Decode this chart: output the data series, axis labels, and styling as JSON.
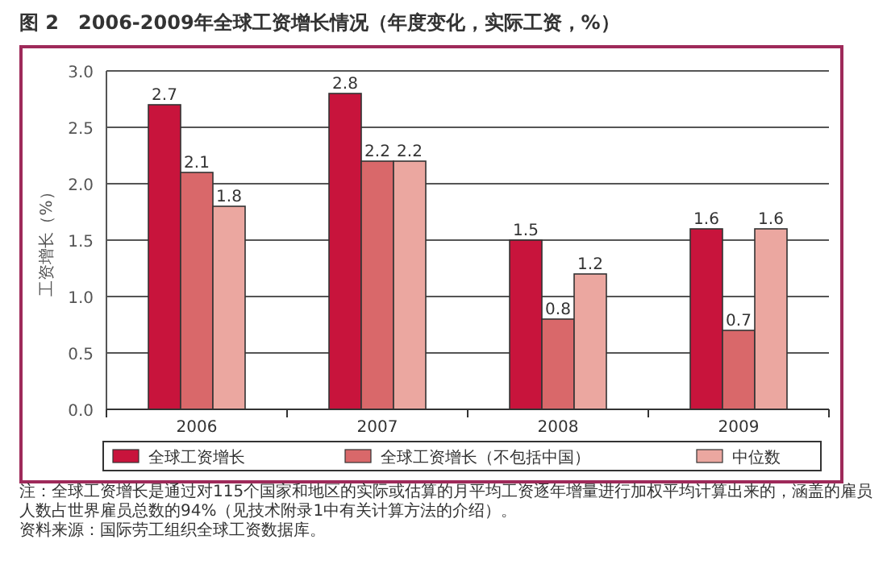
{
  "chart_data": {
    "type": "bar",
    "title": "图 2　2006-2009年全球工资增长情况（年度变化，实际工资，%）",
    "ylabel": "工资增长（%）",
    "categories": [
      "2006",
      "2007",
      "2008",
      "2009"
    ],
    "series": [
      {
        "name": "全球工资增长",
        "color": "#c8143c",
        "values": [
          2.7,
          2.8,
          1.5,
          1.6
        ]
      },
      {
        "name": "全球工资增长（不包括中国）",
        "color": "#d9686a",
        "values": [
          2.1,
          2.2,
          0.8,
          0.7
        ]
      },
      {
        "name": "中位数",
        "color": "#eba7a0",
        "values": [
          1.8,
          2.2,
          1.2,
          1.6
        ]
      }
    ],
    "ylim": [
      0,
      3
    ],
    "yticks": [
      {
        "value": 0,
        "label": "0.0"
      },
      {
        "value": 0.5,
        "label": "0.5"
      },
      {
        "value": 1,
        "label": "1.0"
      },
      {
        "value": 1.5,
        "label": "1.5"
      },
      {
        "value": 2,
        "label": "2.0"
      },
      {
        "value": 2.5,
        "label": "2.5"
      },
      {
        "value": 3,
        "label": "3.0"
      }
    ],
    "grid": "y",
    "legend": "bottom",
    "data_labels": true,
    "annotations": [
      "注：全球工资增长是通过对115个国家和地区的实际或估算的月平均工资逐年增量进行加权平均计算出来的，涵盖的雇员人数占世界雇员总数的94%（见技术附录1中有关计算方法的介绍）。",
      "资料来源：国际劳工组织全球工资数据库。"
    ]
  }
}
